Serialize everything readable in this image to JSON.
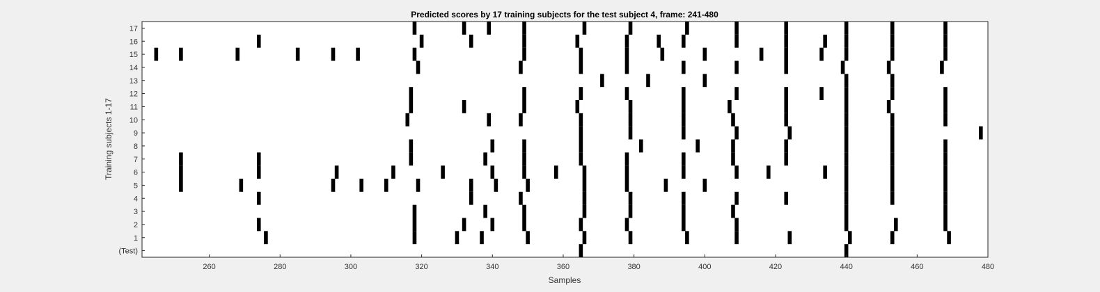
{
  "chart_data": {
    "type": "raster",
    "title": "Predicted scores by 17 training subjects for the test subject 4, frame: 241-480",
    "xlabel": "Samples",
    "ylabel": "Training subjects 1-17",
    "xlim": [
      241,
      480
    ],
    "xticks": [
      260,
      280,
      300,
      320,
      340,
      360,
      380,
      400,
      420,
      440,
      460,
      480
    ],
    "row_labels": [
      "(Test)",
      "1",
      "2",
      "3",
      "4",
      "5",
      "6",
      "7",
      "8",
      "9",
      "10",
      "11",
      "12",
      "13",
      "14",
      "15",
      "16",
      "17"
    ],
    "rows": [
      {
        "label": "(Test)",
        "events": [
          365,
          440
        ]
      },
      {
        "label": "1",
        "events": [
          276,
          318,
          330,
          337,
          350,
          366,
          379,
          395,
          409,
          424,
          441,
          453,
          469
        ]
      },
      {
        "label": "2",
        "events": [
          274,
          318,
          332,
          340,
          349,
          365,
          378,
          394,
          409,
          440,
          454,
          468
        ]
      },
      {
        "label": "3",
        "events": [
          318,
          338,
          349,
          366,
          379,
          394,
          408,
          440,
          468
        ]
      },
      {
        "label": "4",
        "events": [
          274,
          334,
          348,
          366,
          379,
          394,
          409,
          423,
          440,
          453,
          468
        ]
      },
      {
        "label": "5",
        "events": [
          252,
          269,
          295,
          303,
          310,
          319,
          334,
          341,
          350,
          366,
          378,
          389,
          400,
          440,
          453,
          468
        ]
      },
      {
        "label": "6",
        "events": [
          252,
          274,
          296,
          312,
          326,
          340,
          349,
          358,
          366,
          378,
          394,
          409,
          418,
          434,
          440,
          453,
          468
        ]
      },
      {
        "label": "7",
        "events": [
          252,
          274,
          317,
          338,
          349,
          365,
          378,
          394,
          408,
          423,
          440,
          453,
          468
        ]
      },
      {
        "label": "8",
        "events": [
          317,
          340,
          349,
          365,
          382,
          398,
          408,
          423,
          440,
          453,
          468
        ]
      },
      {
        "label": "9",
        "events": [
          365,
          379,
          394,
          409,
          424,
          440,
          453,
          478
        ]
      },
      {
        "label": "10",
        "events": [
          316,
          339,
          348,
          365,
          379,
          394,
          408,
          423,
          440,
          453,
          468
        ]
      },
      {
        "label": "11",
        "events": [
          317,
          332,
          349,
          364,
          379,
          394,
          407,
          423,
          440,
          452,
          468
        ]
      },
      {
        "label": "12",
        "events": [
          317,
          349,
          365,
          378,
          394,
          409,
          423,
          433,
          440,
          453,
          468
        ]
      },
      {
        "label": "13",
        "events": [
          371,
          384,
          400,
          440,
          453
        ]
      },
      {
        "label": "14",
        "events": [
          319,
          348,
          365,
          378,
          394,
          409,
          423,
          439,
          452,
          467
        ]
      },
      {
        "label": "15",
        "events": [
          245,
          252,
          268,
          285,
          295,
          302,
          318,
          349,
          365,
          378,
          388,
          400,
          416,
          423,
          433,
          440,
          453,
          468
        ]
      },
      {
        "label": "16",
        "events": [
          274,
          320,
          334,
          349,
          364,
          378,
          387,
          394,
          409,
          423,
          434,
          440,
          453,
          468
        ]
      },
      {
        "label": "17",
        "events": [
          318,
          332,
          339,
          349,
          366,
          379,
          395,
          409,
          423,
          440,
          453,
          468
        ]
      }
    ],
    "mark_color": "#000000",
    "background_color": "#ffffff",
    "figure_color": "#f0f0f0",
    "grid": false,
    "legend": "none"
  }
}
